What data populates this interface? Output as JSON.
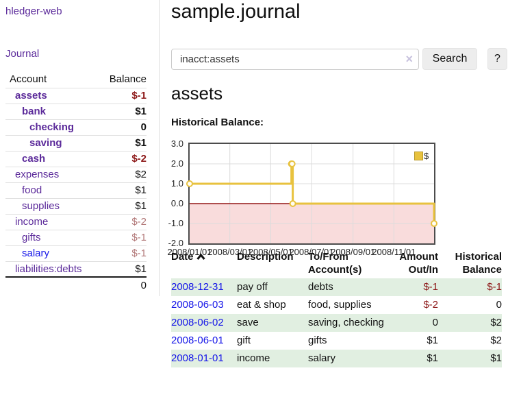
{
  "app": {
    "brand": "hledger-web",
    "nav_journal": "Journal"
  },
  "sidebar": {
    "accounts_table": {
      "headers": {
        "account": "Account",
        "balance": "Balance"
      },
      "rows": [
        {
          "name": "assets",
          "balance": "$-1",
          "depth": 1,
          "emph": true,
          "negative": "strong",
          "link": "purple"
        },
        {
          "name": "bank",
          "balance": "$1",
          "depth": 2,
          "emph": true,
          "negative": null,
          "link": "purple"
        },
        {
          "name": "checking",
          "balance": "0",
          "depth": 3,
          "emph": true,
          "negative": null,
          "link": "purple"
        },
        {
          "name": "saving",
          "balance": "$1",
          "depth": 3,
          "emph": true,
          "negative": null,
          "link": "purple"
        },
        {
          "name": "cash",
          "balance": "$-2",
          "depth": 2,
          "emph": true,
          "negative": "strong",
          "link": "purple"
        },
        {
          "name": "expenses",
          "balance": "$2",
          "depth": 1,
          "emph": false,
          "negative": null,
          "link": "purple"
        },
        {
          "name": "food",
          "balance": "$1",
          "depth": 2,
          "emph": false,
          "negative": null,
          "link": "purple"
        },
        {
          "name": "supplies",
          "balance": "$1",
          "depth": 2,
          "emph": false,
          "negative": null,
          "link": "purple"
        },
        {
          "name": "income",
          "balance": "$-2",
          "depth": 1,
          "emph": false,
          "negative": "soft",
          "link": "purple"
        },
        {
          "name": "gifts",
          "balance": "$-1",
          "depth": 2,
          "emph": false,
          "negative": "soft",
          "link": "purple"
        },
        {
          "name": "salary",
          "balance": "$-1",
          "depth": 2,
          "emph": false,
          "negative": "soft",
          "link": "blue"
        },
        {
          "name": "liabilities:debts",
          "balance": "$1",
          "depth": 1,
          "emph": false,
          "negative": null,
          "link": "purple"
        }
      ],
      "total": "0"
    }
  },
  "header": {
    "title": "sample.journal"
  },
  "search": {
    "value": "inacct:assets",
    "clear_icon": "×",
    "button": "Search",
    "help_button": "?"
  },
  "account_page": {
    "heading": "assets",
    "chart_label": "Historical Balance:"
  },
  "chart_data": {
    "type": "line",
    "step": true,
    "title": "Historical Balance:",
    "series": [
      {
        "name": "$",
        "color": "#e8c23e",
        "points": [
          [
            "2008-01-01",
            1
          ],
          [
            "2008-06-01",
            2
          ],
          [
            "2008-06-02",
            2
          ],
          [
            "2008-06-03",
            0
          ],
          [
            "2008-12-31",
            -1
          ]
        ]
      }
    ],
    "x_range": [
      "2008/01/01",
      "2008/12/31"
    ],
    "x_ticks": [
      "2008/01/01",
      "2008/03/01",
      "2008/05/01",
      "2008/07/01",
      "2008/09/01",
      "2008/11/01"
    ],
    "y_ticks": [
      "3.0",
      "2.0",
      "1.0",
      "0.0",
      "-1.0",
      "-2.0"
    ],
    "ylim": [
      -2,
      3
    ],
    "grid": true,
    "legend_position": "top-right",
    "negative_region_color": "#f9dcdc",
    "zero_line_color": "#941616",
    "grid_color": "#dcdcdc",
    "marker_fill": "#fffdf5"
  },
  "register": {
    "columns": {
      "date": "Date",
      "description": "Description",
      "accounts": "To/From Account(s)",
      "amount": "Amount Out/In",
      "balance": "Historical Balance"
    },
    "sort": "date-ascending",
    "rows": [
      {
        "date": "2008-12-31",
        "description": "pay off",
        "accounts": "debts",
        "amount": "$-1",
        "amount_negative": true,
        "balance": "$-1",
        "balance_negative": true
      },
      {
        "date": "2008-06-03",
        "description": "eat & shop",
        "accounts": "food, supplies",
        "amount": "$-2",
        "amount_negative": true,
        "balance": "0",
        "balance_negative": false
      },
      {
        "date": "2008-06-02",
        "description": "save",
        "accounts": "saving, checking",
        "amount": "0",
        "amount_negative": false,
        "balance": "$2",
        "balance_negative": false
      },
      {
        "date": "2008-06-01",
        "description": "gift",
        "accounts": "gifts",
        "amount": "$1",
        "amount_negative": false,
        "balance": "$2",
        "balance_negative": false
      },
      {
        "date": "2008-01-01",
        "description": "income",
        "accounts": "salary",
        "amount": "$1",
        "amount_negative": false,
        "balance": "$1",
        "balance_negative": false
      }
    ]
  },
  "colors": {
    "link_purple": "#5b2a9a",
    "link_blue": "#1616e8",
    "negative_strong": "#8c1717",
    "negative_soft": "#b27878",
    "row_stripe_green": "#e1efe1",
    "series_gold": "#e8c23e",
    "chart_negative_bg": "#f9dcdc",
    "chart_zero_line": "#941616",
    "button_bg": "#ededed"
  }
}
